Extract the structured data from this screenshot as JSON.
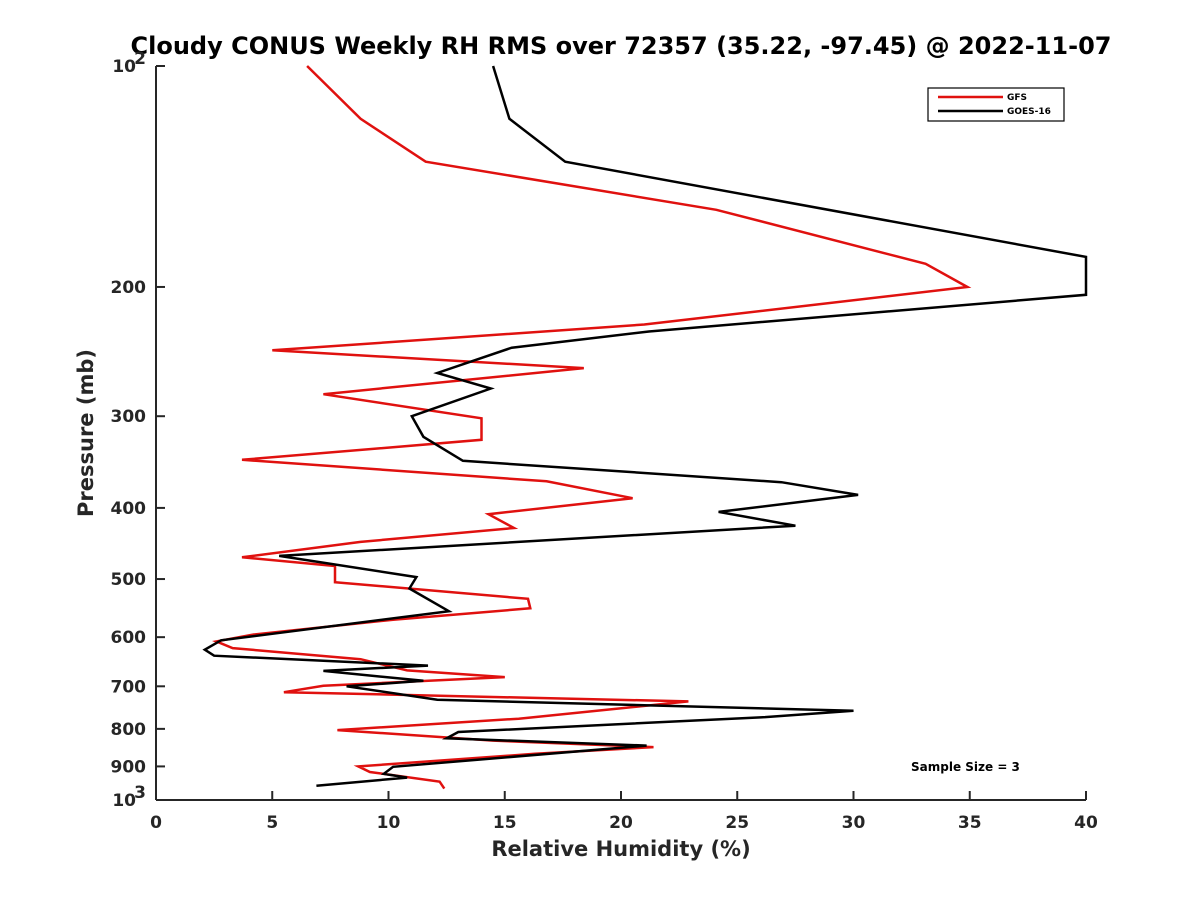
{
  "chart_data": {
    "type": "line",
    "title": "Cloudy CONUS Weekly RH RMS over 72357 (35.22, -97.45) @ 2022-11-07",
    "xlabel": "Relative Humidity (%)",
    "ylabel": "Pressure (mb)",
    "xlim": [
      0,
      40
    ],
    "ylim": [
      100,
      1000
    ],
    "y_scale": "log",
    "y_reversed": true,
    "grid": false,
    "legend_position": "top-right",
    "x_ticks": [
      "0",
      "5",
      "10",
      "15",
      "20",
      "25",
      "30",
      "35",
      "40"
    ],
    "y_ticks": [
      {
        "value": 100,
        "base": "10",
        "exp": "2"
      },
      {
        "value": 200,
        "label": "200"
      },
      {
        "value": 300,
        "label": "300"
      },
      {
        "value": 400,
        "label": "400"
      },
      {
        "value": 500,
        "label": "500"
      },
      {
        "value": 600,
        "label": "600"
      },
      {
        "value": 700,
        "label": "700"
      },
      {
        "value": 800,
        "label": "800"
      },
      {
        "value": 900,
        "label": "900"
      },
      {
        "value": 1000,
        "base": "10",
        "exp": "3"
      }
    ],
    "annotation": "Sample Size = 3",
    "series": [
      {
        "name": "GFS",
        "color": "#e0110f",
        "points": [
          [
            6.5,
            100
          ],
          [
            8.8,
            118
          ],
          [
            11.6,
            135
          ],
          [
            24.1,
            157
          ],
          [
            33.1,
            186
          ],
          [
            34.9,
            200
          ],
          [
            21.0,
            225
          ],
          [
            5.0,
            244
          ],
          [
            18.4,
            258
          ],
          [
            7.2,
            280
          ],
          [
            14.0,
            302
          ],
          [
            14.0,
            323
          ],
          [
            3.7,
            344
          ],
          [
            16.8,
            368
          ],
          [
            20.5,
            388
          ],
          [
            14.3,
            408
          ],
          [
            15.4,
            426
          ],
          [
            8.8,
            445
          ],
          [
            3.7,
            467
          ],
          [
            7.7,
            480
          ],
          [
            7.7,
            505
          ],
          [
            16.0,
            532
          ],
          [
            16.1,
            548
          ],
          [
            10.2,
            568
          ],
          [
            4.2,
            595
          ],
          [
            2.6,
            608
          ],
          [
            3.3,
            621
          ],
          [
            8.8,
            643
          ],
          [
            10.8,
            666
          ],
          [
            15.0,
            680
          ],
          [
            7.2,
            699
          ],
          [
            5.5,
            713
          ],
          [
            22.9,
            734
          ],
          [
            15.6,
            775
          ],
          [
            7.8,
            803
          ],
          [
            14.5,
            830
          ],
          [
            21.4,
            847
          ],
          [
            16.3,
            865
          ],
          [
            8.7,
            900
          ],
          [
            9.2,
            916
          ],
          [
            12.2,
            944
          ],
          [
            12.4,
            965
          ]
        ]
      },
      {
        "name": "GOES-16",
        "color": "#000000",
        "points": [
          [
            14.5,
            100
          ],
          [
            15.2,
            118
          ],
          [
            17.6,
            135
          ],
          [
            40.0,
            182
          ],
          [
            40.0,
            205
          ],
          [
            21.2,
            230
          ],
          [
            15.3,
            242
          ],
          [
            12.1,
            262
          ],
          [
            14.4,
            275
          ],
          [
            11.0,
            300
          ],
          [
            11.5,
            320
          ],
          [
            13.2,
            345
          ],
          [
            26.9,
            369
          ],
          [
            30.2,
            384
          ],
          [
            24.2,
            405
          ],
          [
            27.5,
            423
          ],
          [
            5.3,
            465
          ],
          [
            11.2,
            497
          ],
          [
            10.9,
            515
          ],
          [
            12.6,
            553
          ],
          [
            2.8,
            606
          ],
          [
            2.1,
            624
          ],
          [
            2.5,
            636
          ],
          [
            11.7,
            656
          ],
          [
            7.2,
            667
          ],
          [
            11.5,
            688
          ],
          [
            8.2,
            700
          ],
          [
            12.1,
            730
          ],
          [
            30.0,
            756
          ],
          [
            26.2,
            771
          ],
          [
            13.0,
            808
          ],
          [
            12.5,
            824
          ],
          [
            21.1,
            843
          ],
          [
            10.2,
            901
          ],
          [
            9.8,
            921
          ],
          [
            10.8,
            932
          ],
          [
            6.9,
            956
          ]
        ]
      }
    ]
  }
}
